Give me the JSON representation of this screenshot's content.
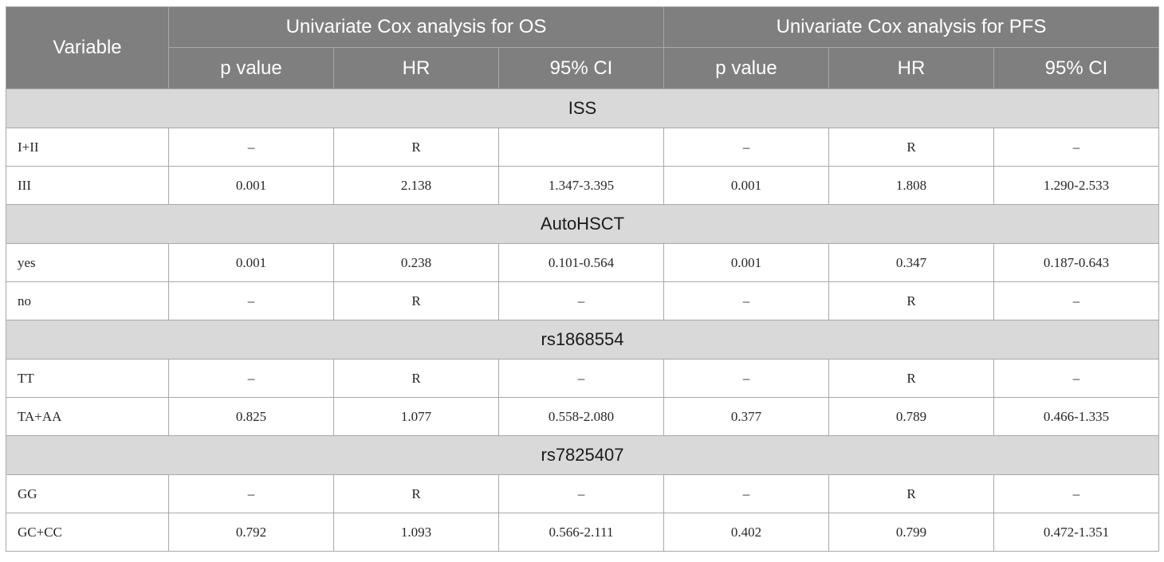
{
  "header": {
    "variable": "Variable",
    "os_group": "Univariate Cox analysis for OS",
    "pfs_group": "Univariate Cox analysis for PFS",
    "columns": [
      "p value",
      "HR",
      "95% CI",
      "p value",
      "HR",
      "95% CI"
    ]
  },
  "sections": [
    {
      "title": "ISS",
      "rows": [
        {
          "label": "I+II",
          "cells": [
            "–",
            "R",
            "",
            "–",
            "R",
            "–"
          ]
        },
        {
          "label": "III",
          "cells": [
            "0.001",
            "2.138",
            "1.347-3.395",
            "0.001",
            "1.808",
            "1.290-2.533"
          ]
        }
      ]
    },
    {
      "title": "AutoHSCT",
      "rows": [
        {
          "label": "yes",
          "cells": [
            "0.001",
            "0.238",
            "0.101-0.564",
            "0.001",
            "0.347",
            "0.187-0.643"
          ]
        },
        {
          "label": "no",
          "cells": [
            "–",
            "R",
            "–",
            "–",
            "R",
            "–"
          ]
        }
      ]
    },
    {
      "title": "rs1868554",
      "rows": [
        {
          "label": "TT",
          "cells": [
            "–",
            "R",
            "–",
            "–",
            "R",
            "–"
          ]
        },
        {
          "label": "TA+AA",
          "cells": [
            "0.825",
            "1.077",
            "0.558-2.080",
            "0.377",
            "0.789",
            "0.466-1.335"
          ]
        }
      ]
    },
    {
      "title": "rs7825407",
      "rows": [
        {
          "label": "GG",
          "cells": [
            "–",
            "R",
            "–",
            "–",
            "R",
            "–"
          ]
        },
        {
          "label": "GC+CC",
          "cells": [
            "0.792",
            "1.093",
            "0.566-2.111",
            "0.402",
            "0.799",
            "0.472-1.351"
          ]
        }
      ]
    }
  ]
}
